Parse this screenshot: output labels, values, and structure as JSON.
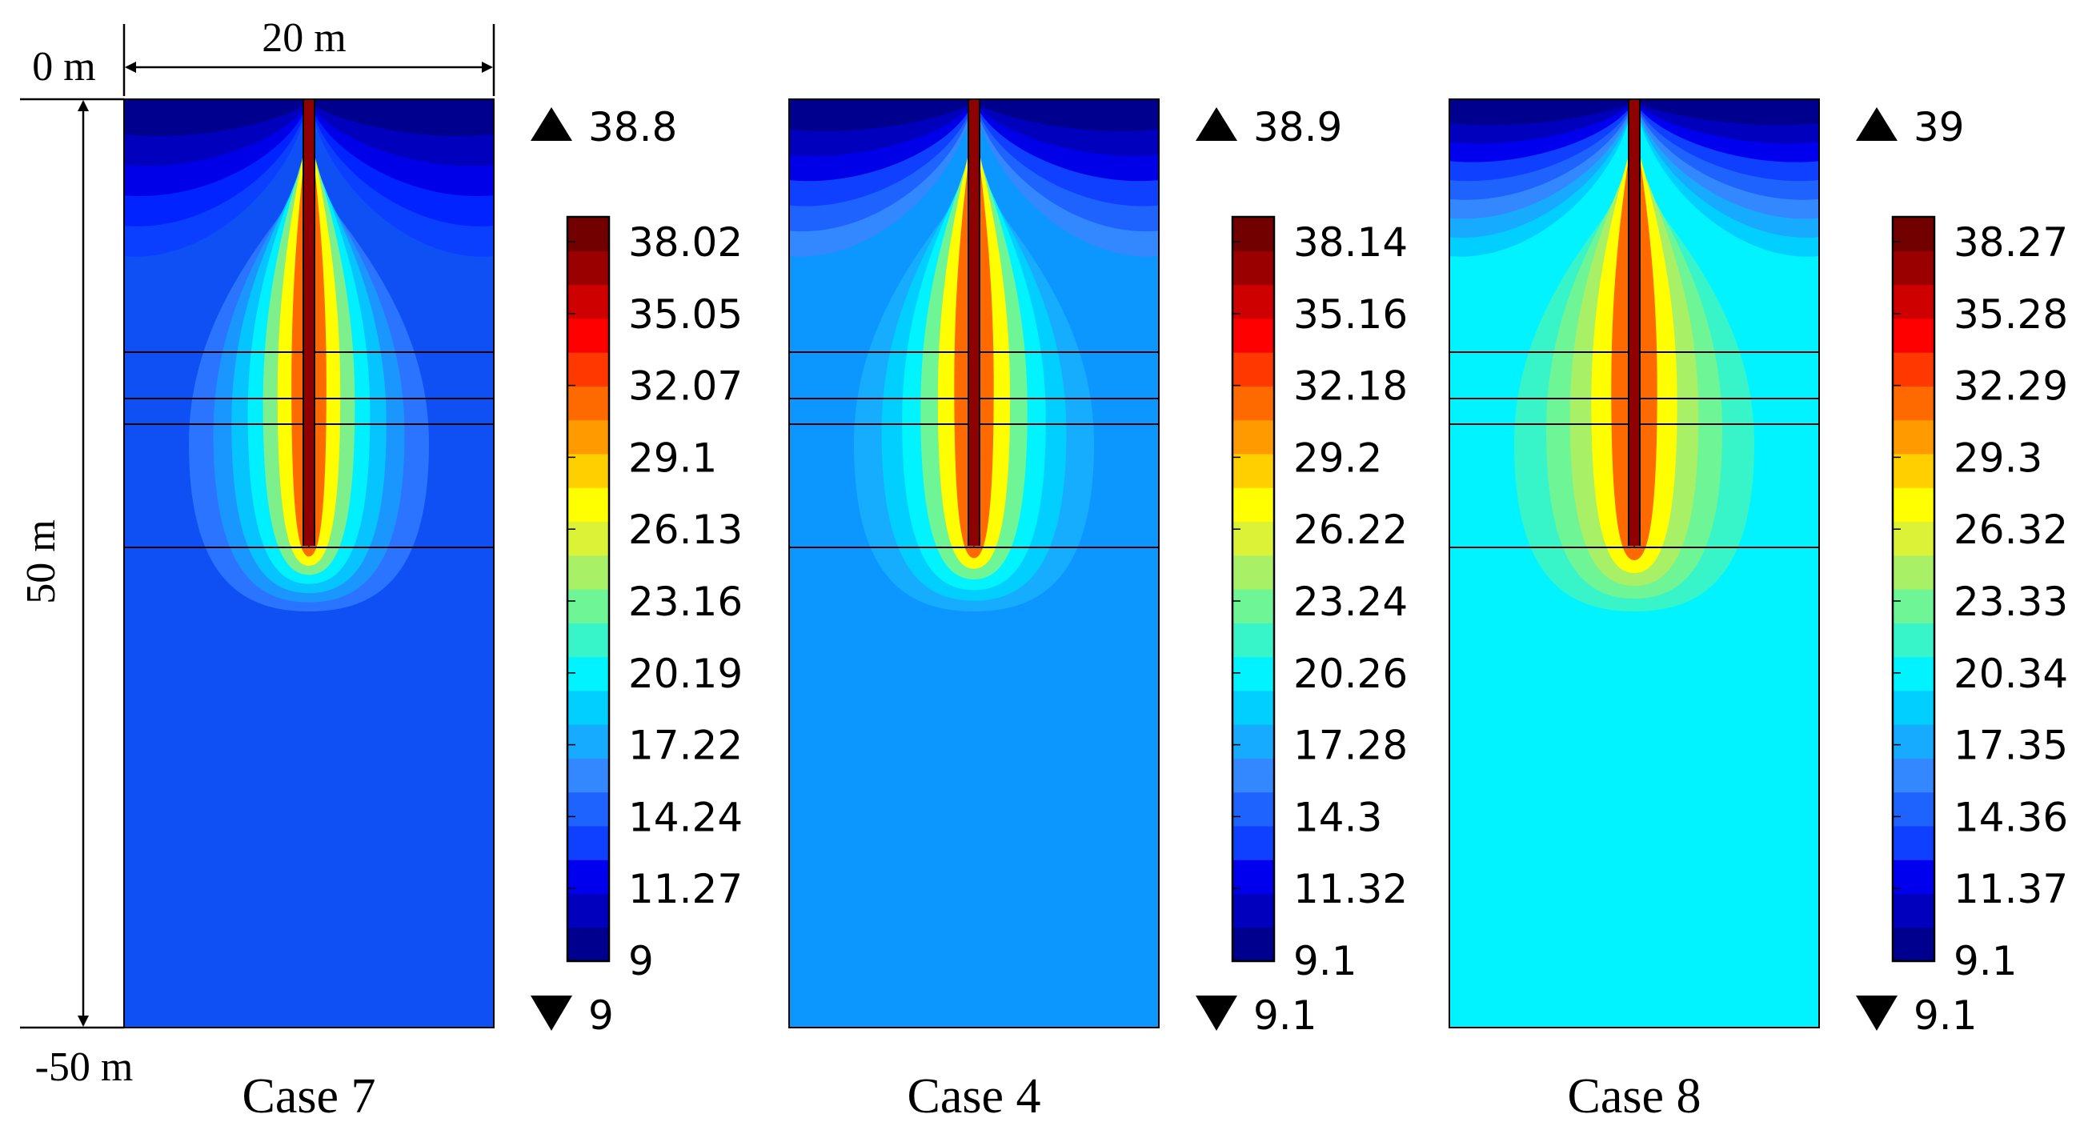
{
  "dimensions": {
    "width_label": "20 m",
    "top_label": "0 m",
    "bottom_label": "-50 m",
    "depth_label": "50 m"
  },
  "colormap": [
    "#00008f",
    "#0000bd",
    "#0000ef",
    "#0f3fff",
    "#1f63ff",
    "#3388ff",
    "#17abff",
    "#00cfff",
    "#00f3ff",
    "#37f5c8",
    "#6df596",
    "#a8f066",
    "#dbf237",
    "#ffff00",
    "#ffcf00",
    "#ff9b00",
    "#ff6a00",
    "#ff3800",
    "#ff0000",
    "#cf0000",
    "#9b0000",
    "#730000"
  ],
  "panels": [
    {
      "case_label": "Case 7",
      "max_label": "38.8",
      "min_label": "9",
      "base_color": "#0f50f5",
      "top_band_colors": [
        "#00008f",
        "#0000bd",
        "#0000e8",
        "#0023ff",
        "#0a3fff"
      ],
      "plume_colors": [
        "#2b74ff",
        "#1a97ff",
        "#06c4ff",
        "#00f0ff",
        "#7df08c",
        "#ffff00",
        "#ff6a00",
        "#ad0000"
      ],
      "colorbar_ticks": [
        "38.02",
        "35.05",
        "32.07",
        "29.1",
        "26.13",
        "23.16",
        "20.19",
        "17.22",
        "14.24",
        "11.27",
        "9"
      ]
    },
    {
      "case_label": "Case 4",
      "max_label": "38.9",
      "min_label": "9.1",
      "base_color": "#0c96ff",
      "top_band_colors": [
        "#00008f",
        "#0000bd",
        "#0000e8",
        "#0f3fff",
        "#1f63ff",
        "#3388ff"
      ],
      "plume_colors": [
        "#17adff",
        "#00cfff",
        "#00f3ff",
        "#6df596",
        "#ffff00",
        "#ff6a00",
        "#ad0000"
      ],
      "colorbar_ticks": [
        "38.14",
        "35.16",
        "32.18",
        "29.2",
        "26.22",
        "23.24",
        "20.26",
        "17.28",
        "14.3",
        "11.32",
        "9.1"
      ]
    },
    {
      "case_label": "Case 8",
      "max_label": "39",
      "min_label": "9.1",
      "base_color": "#00f3ff",
      "top_band_colors": [
        "#00008f",
        "#0000bd",
        "#0000ef",
        "#0f3fff",
        "#1f63ff",
        "#3388ff",
        "#17abff",
        "#00cfff"
      ],
      "plume_colors": [
        "#37f5c8",
        "#6df596",
        "#a8f066",
        "#ffff00",
        "#ff6a00",
        "#ad0000"
      ],
      "colorbar_ticks": [
        "38.27",
        "35.28",
        "32.29",
        "29.3",
        "26.32",
        "23.33",
        "20.34",
        "17.35",
        "14.36",
        "11.37",
        "9.1"
      ]
    }
  ]
}
